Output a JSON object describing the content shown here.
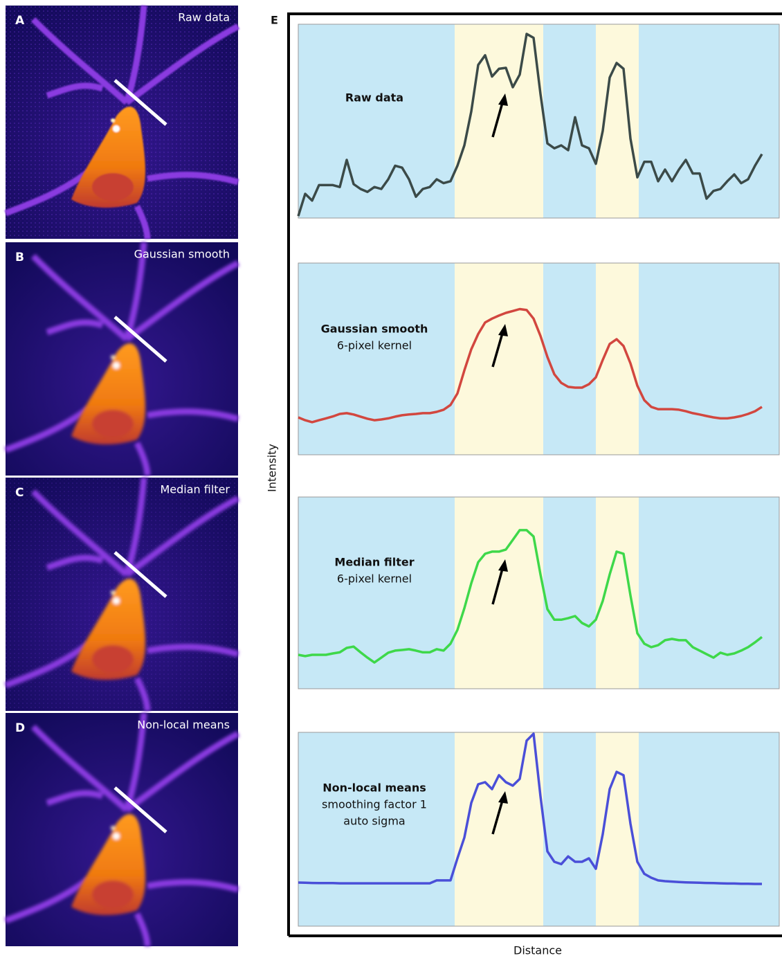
{
  "image_panels": [
    {
      "label": "A",
      "title": "Raw data"
    },
    {
      "label": "B",
      "title": "Gaussian smooth"
    },
    {
      "label": "C",
      "title": "Median filter"
    },
    {
      "label": "D",
      "title": "Non-local means"
    }
  ],
  "plot_panel_label": "E",
  "axis_labels": {
    "y": "Intensity",
    "x": "Distance"
  },
  "chart_data": [
    {
      "type": "line",
      "title": "Raw data",
      "subtitle": [],
      "xlim": [
        0,
        67
      ],
      "ylim": [
        0,
        100
      ],
      "x": [
        0,
        1,
        2,
        3,
        4,
        5,
        6,
        7,
        8,
        9,
        10,
        11,
        12,
        13,
        14,
        15,
        16,
        17,
        18,
        19,
        20,
        21,
        22,
        23,
        24,
        25,
        26,
        27,
        28,
        29,
        30,
        31,
        32,
        33,
        34,
        35,
        36,
        37,
        38,
        39,
        40,
        41,
        42,
        43,
        44,
        45,
        46,
        47,
        48,
        49,
        50,
        51,
        52,
        53,
        54,
        55,
        56,
        57,
        58,
        59,
        60,
        61,
        62,
        63,
        64,
        65,
        66,
        67
      ],
      "series": [
        {
          "color": "#3b4a48",
          "values": [
            1,
            12.5,
            9,
            17,
            17,
            17,
            16,
            30,
            17.5,
            15,
            13.5,
            16,
            15,
            20,
            27,
            26,
            20,
            11,
            15,
            16,
            20,
            18,
            19,
            27,
            37.5,
            55,
            79,
            84,
            73,
            77,
            77.5,
            67.5,
            74,
            95,
            93,
            64,
            38.5,
            36,
            37.5,
            35,
            52,
            37.5,
            36,
            28,
            45,
            72.5,
            80,
            77,
            41,
            21,
            29,
            29,
            19,
            25,
            19,
            25,
            30,
            23,
            23,
            10,
            14,
            15,
            19,
            22.5,
            18,
            20,
            27,
            33
          ]
        }
      ]
    },
    {
      "type": "line",
      "title": "Gaussian smooth",
      "subtitle": [
        "6-pixel kernel"
      ],
      "xlim": [
        0,
        67
      ],
      "ylim": [
        0,
        100
      ],
      "x": [
        0,
        1,
        2,
        3,
        4,
        5,
        6,
        7,
        8,
        9,
        10,
        11,
        12,
        13,
        14,
        15,
        16,
        17,
        18,
        19,
        20,
        21,
        22,
        23,
        24,
        25,
        26,
        27,
        28,
        29,
        30,
        31,
        32,
        33,
        34,
        35,
        36,
        37,
        38,
        39,
        40,
        41,
        42,
        43,
        44,
        45,
        46,
        47,
        48,
        49,
        50,
        51,
        52,
        53,
        54,
        55,
        56,
        57,
        58,
        59,
        60,
        61,
        62,
        63,
        64,
        65,
        66,
        67
      ],
      "series": [
        {
          "color": "#d2473f",
          "values": [
            19.5,
            18,
            17,
            18,
            19,
            20,
            21.3,
            21.7,
            21,
            19.9,
            18.8,
            18,
            18.4,
            19,
            19.9,
            20.6,
            21,
            21.3,
            21.7,
            21.7,
            22.4,
            23.5,
            26,
            32,
            44,
            55,
            63,
            69,
            71,
            72.6,
            74,
            75,
            76,
            75.5,
            71,
            62,
            51,
            42,
            37.5,
            35.4,
            35,
            35,
            36.8,
            40.4,
            49.5,
            57.8,
            60.3,
            56.7,
            47.7,
            36,
            28.5,
            25,
            23.8,
            23.8,
            23.8,
            23.5,
            22.7,
            21.7,
            21,
            20.2,
            19.5,
            19,
            19,
            19.5,
            20.2,
            21.3,
            22.7,
            25
          ]
        }
      ]
    },
    {
      "type": "line",
      "title": "Median filter",
      "subtitle": [
        "6-pixel kernel"
      ],
      "xlim": [
        0,
        67
      ],
      "ylim": [
        0,
        100
      ],
      "x": [
        0,
        1,
        2,
        3,
        4,
        5,
        6,
        7,
        8,
        9,
        10,
        11,
        12,
        13,
        14,
        15,
        16,
        17,
        18,
        19,
        20,
        21,
        22,
        23,
        24,
        25,
        26,
        27,
        28,
        29,
        30,
        31,
        32,
        33,
        34,
        35,
        36,
        37,
        38,
        39,
        40,
        41,
        42,
        43,
        44,
        45,
        46,
        47,
        48,
        49,
        50,
        51,
        52,
        53,
        54,
        55,
        56,
        57,
        58,
        59,
        60,
        61,
        62,
        63,
        64,
        65,
        66,
        67
      ],
      "series": [
        {
          "color": "#3ed84a",
          "values": [
            17.7,
            17,
            17.7,
            17.7,
            17.7,
            18.4,
            19,
            21.3,
            22,
            19,
            16.2,
            13.7,
            16.2,
            18.8,
            19.9,
            20.2,
            20.6,
            19.9,
            19,
            19,
            20.6,
            19.9,
            23.5,
            30.7,
            42,
            55,
            66,
            70.4,
            71.5,
            71.5,
            72.6,
            77.6,
            82.7,
            82.7,
            79.4,
            59.6,
            41.5,
            36,
            36,
            36.8,
            37.9,
            34.3,
            32.5,
            36,
            45.8,
            59.6,
            71.5,
            70.4,
            48.7,
            28.9,
            23.5,
            21.7,
            22.7,
            25.3,
            26,
            25.3,
            25.3,
            21.7,
            19.9,
            18,
            16.2,
            18.8,
            17.7,
            18.4,
            19.9,
            21.7,
            24.2,
            27
          ]
        }
      ]
    },
    {
      "type": "line",
      "title": "Non-local means",
      "subtitle": [
        "smoothing factor 1",
        "auto sigma"
      ],
      "xlim": [
        0,
        67
      ],
      "ylim": [
        0,
        100
      ],
      "x": [
        0,
        1,
        2,
        3,
        4,
        5,
        6,
        7,
        8,
        9,
        10,
        11,
        12,
        13,
        14,
        15,
        16,
        17,
        18,
        19,
        20,
        21,
        22,
        23,
        24,
        25,
        26,
        27,
        28,
        29,
        30,
        31,
        32,
        33,
        34,
        35,
        36,
        37,
        38,
        39,
        40,
        41,
        42,
        43,
        44,
        45,
        46,
        47,
        48,
        49,
        50,
        51,
        52,
        53,
        54,
        55,
        56,
        57,
        58,
        59,
        60,
        61,
        62,
        63,
        64,
        65,
        66,
        67
      ],
      "series": [
        {
          "color": "#4a4fd8",
          "values": [
            22.5,
            22.4,
            22.3,
            22.2,
            22.2,
            22.2,
            22.1,
            22.1,
            22.1,
            22.1,
            22.1,
            22.1,
            22.1,
            22.1,
            22.1,
            22.1,
            22.1,
            22.1,
            22.1,
            22.1,
            23.6,
            23.6,
            23.6,
            35,
            45.7,
            63.6,
            73.2,
            74.3,
            70.7,
            77.9,
            74.3,
            72.5,
            76,
            95.7,
            99.3,
            67,
            38.6,
            33.2,
            32,
            36,
            33.2,
            33.2,
            35,
            29.6,
            47.5,
            70.7,
            79.6,
            77.9,
            52.9,
            33.2,
            27,
            25,
            23.6,
            23.2,
            23,
            22.8,
            22.6,
            22.5,
            22.4,
            22.3,
            22.2,
            22.1,
            22,
            22,
            21.9,
            21.9,
            21.8,
            21.8
          ]
        }
      ]
    }
  ]
}
